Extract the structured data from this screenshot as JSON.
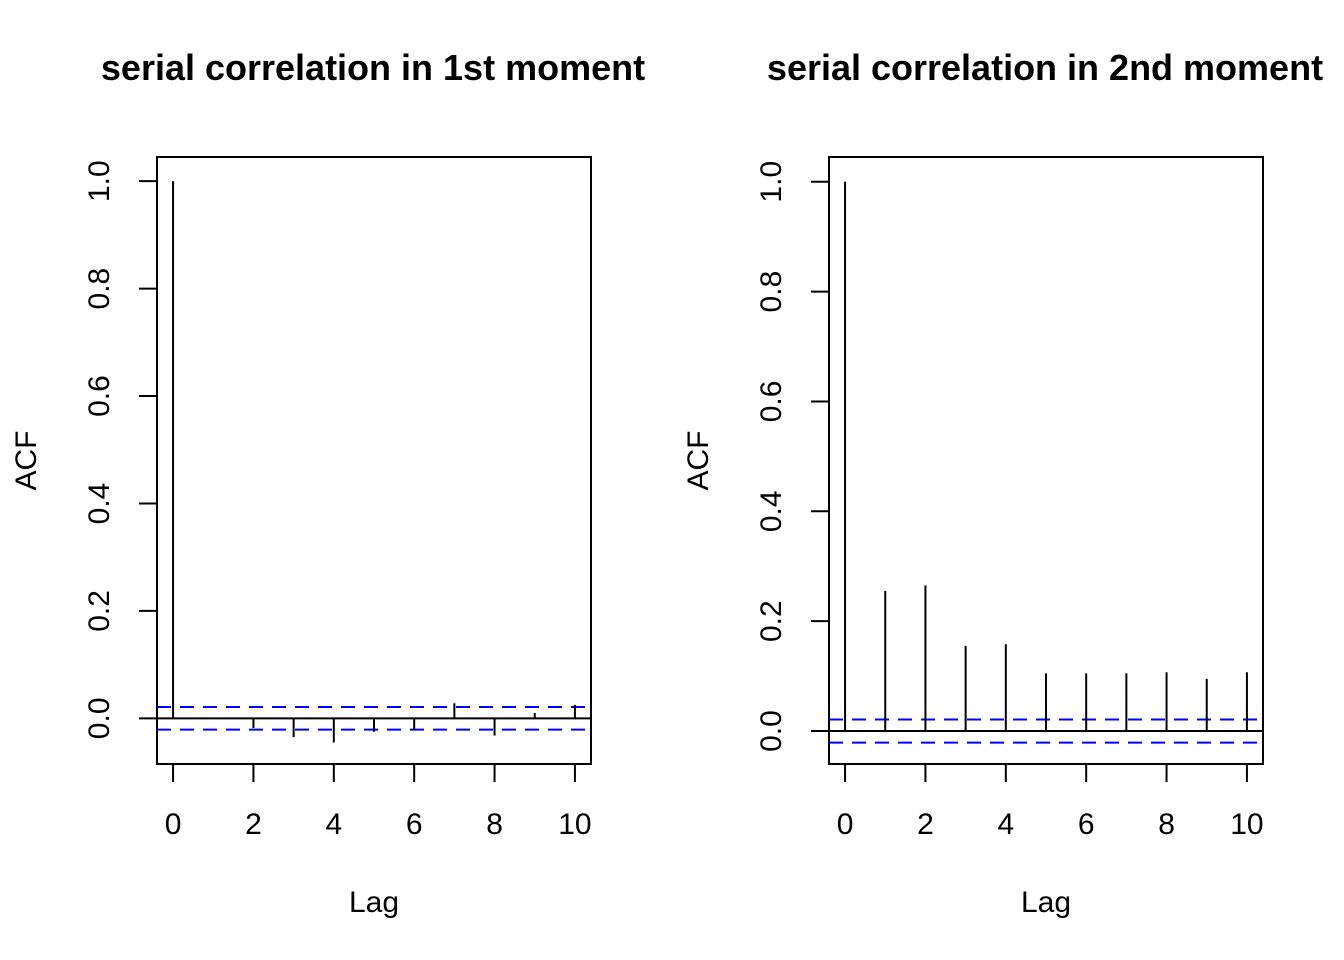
{
  "chart_data": [
    {
      "type": "bar",
      "title": "serial correlation in 1st moment",
      "xlabel": "Lag",
      "ylabel": "ACF",
      "xlim": [
        -0.4,
        10.4
      ],
      "ylim": [
        -0.085,
        1.045
      ],
      "x_ticks": [
        "0",
        "2",
        "4",
        "6",
        "8",
        "10"
      ],
      "y_ticks": [
        "0.0",
        "0.2",
        "0.4",
        "0.6",
        "0.8",
        "1.0"
      ],
      "lags": [
        0,
        1,
        2,
        3,
        4,
        5,
        6,
        7,
        8,
        9,
        10
      ],
      "values": [
        1.0,
        0.0,
        -0.018,
        -0.035,
        -0.045,
        -0.025,
        -0.022,
        0.028,
        -0.032,
        0.01,
        0.025
      ],
      "ci": 0.021,
      "ci_color": "#0000ff",
      "grid": false,
      "legend": "none"
    },
    {
      "type": "bar",
      "title": "serial correlation in 2nd moment",
      "xlabel": "Lag",
      "ylabel": "ACF",
      "xlim": [
        -0.4,
        10.4
      ],
      "ylim": [
        -0.06,
        1.045
      ],
      "x_ticks": [
        "0",
        "2",
        "4",
        "6",
        "8",
        "10"
      ],
      "y_ticks": [
        "0.0",
        "0.2",
        "0.4",
        "0.6",
        "0.8",
        "1.0"
      ],
      "lags": [
        0,
        1,
        2,
        3,
        4,
        5,
        6,
        7,
        8,
        9,
        10
      ],
      "values": [
        1.0,
        0.255,
        0.265,
        0.155,
        0.158,
        0.105,
        0.105,
        0.105,
        0.107,
        0.095,
        0.107
      ],
      "ci": 0.021,
      "ci_color": "#0000ff",
      "grid": false,
      "legend": "none"
    }
  ]
}
